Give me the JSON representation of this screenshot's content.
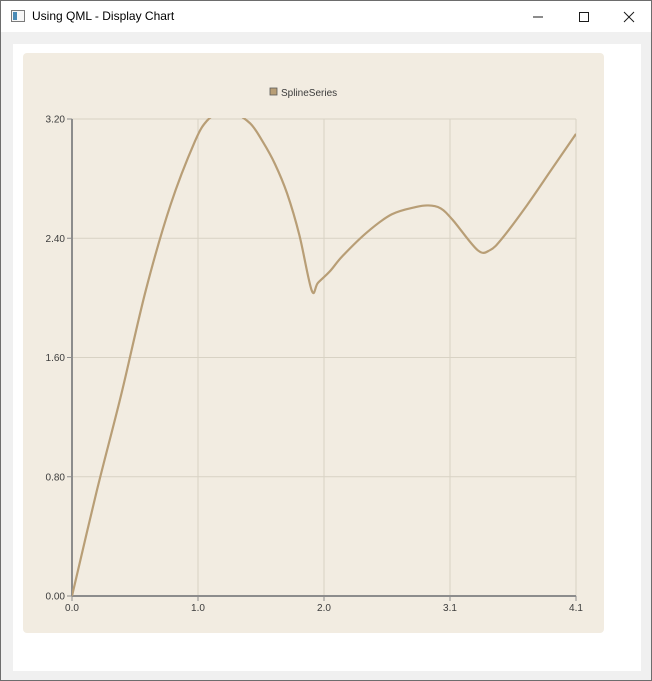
{
  "window": {
    "title": "Using QML - Display Chart"
  },
  "icons": {
    "app": "app-window-icon",
    "minimize": "minimize-icon",
    "maximize": "maximize-icon",
    "close": "close-icon"
  },
  "colors": {
    "chart_background": "#f2ece1",
    "plot_grid": "#d8d2c4",
    "axis_line": "#8c8c8c",
    "series": "#b89e76",
    "tick_text": "#3c3c3c"
  },
  "chart_data": {
    "type": "line",
    "theme": "Qt Charts beige",
    "legend": {
      "position": "top",
      "entries": [
        "SplineSeries"
      ]
    },
    "grid": true,
    "xlim": [
      0.0,
      4.1
    ],
    "ylim": [
      0.0,
      3.2
    ],
    "x_ticks": [
      "0.0",
      "1.0",
      "2.0",
      "3.1",
      "4.1"
    ],
    "y_ticks": [
      "0.00",
      "0.80",
      "1.60",
      "2.40",
      "3.20"
    ],
    "series": [
      {
        "name": "SplineSeries",
        "x": [
          0.0,
          0.2,
          0.4,
          0.6,
          0.8,
          1.0,
          1.1,
          1.2,
          1.3,
          1.45,
          1.55,
          1.65,
          1.75,
          1.85,
          1.95,
          2.0,
          2.1,
          2.2,
          2.4,
          2.6,
          2.8,
          2.9,
          3.0,
          3.1,
          3.3,
          3.4,
          3.5,
          3.7,
          3.9,
          4.1
        ],
        "y": [
          0.0,
          0.7,
          1.35,
          2.05,
          2.62,
          3.05,
          3.19,
          3.24,
          3.25,
          3.17,
          3.05,
          2.9,
          2.7,
          2.42,
          2.05,
          2.1,
          2.18,
          2.28,
          2.44,
          2.56,
          2.61,
          2.62,
          2.6,
          2.52,
          2.32,
          2.32,
          2.4,
          2.62,
          2.86,
          3.1
        ]
      }
    ]
  }
}
